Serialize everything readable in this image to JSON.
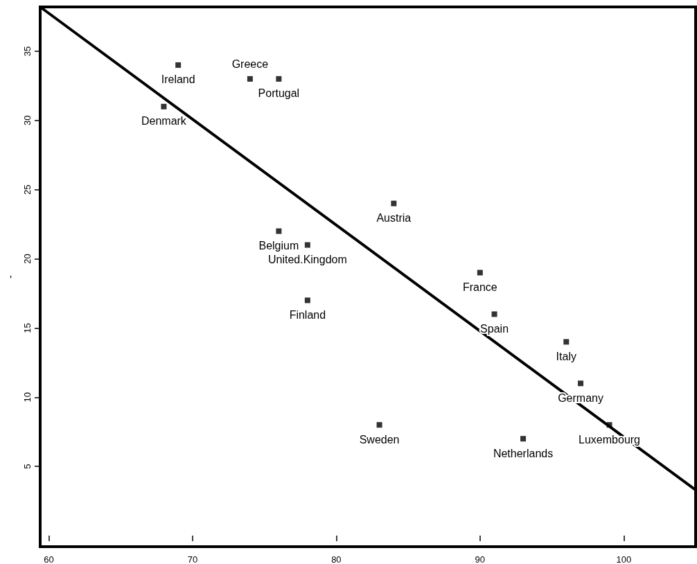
{
  "chart_data": {
    "type": "scatter",
    "ylabel": "-",
    "x": [
      69,
      74,
      76,
      68,
      84,
      76,
      78,
      78,
      90,
      91,
      96,
      97,
      99,
      83,
      93
    ],
    "values": [
      34,
      33,
      33,
      31,
      24,
      22,
      21,
      17,
      19,
      16,
      14,
      11,
      8,
      8,
      7
    ],
    "color": "#000000",
    "marker": "square",
    "series": [
      {
        "type": "line",
        "x": [
          59.4,
          105
        ],
        "values": [
          38.2,
          3.3
        ],
        "color": "#000000",
        "marker": "none"
      }
    ],
    "annotations": [
      {
        "text": "Ireland",
        "x": 69,
        "y": 34
      },
      {
        "text": "Portugal",
        "x": 76,
        "y": 33
      },
      {
        "text": "Greece",
        "x": 74,
        "y": 33
      },
      {
        "text": "Denmark",
        "x": 68,
        "y": 31
      },
      {
        "text": "Austria",
        "x": 84,
        "y": 24
      },
      {
        "text": "United.Kingdom",
        "x": 78,
        "y": 21
      },
      {
        "text": "Belgium",
        "x": 76,
        "y": 22
      },
      {
        "text": "Finland",
        "x": 78,
        "y": 17
      },
      {
        "text": "France",
        "x": 90,
        "y": 19
      },
      {
        "text": "Spain",
        "x": 91,
        "y": 16
      },
      {
        "text": "Italy",
        "x": 96,
        "y": 14
      },
      {
        "text": "Germany",
        "x": 97,
        "y": 11
      },
      {
        "text": "Luxembourg",
        "x": 99,
        "y": 8
      },
      {
        "text": "Sweden",
        "x": 83,
        "y": 8
      },
      {
        "text": "Netherlands",
        "x": 93,
        "y": 7
      }
    ],
    "xlim": [
      59.4,
      105
    ],
    "ylim": [
      -0.8,
      38.2
    ],
    "xticks": [
      60,
      70,
      80,
      90,
      100
    ],
    "yticks": [
      5,
      10,
      15,
      20,
      25,
      30,
      35
    ],
    "grid": false
  }
}
